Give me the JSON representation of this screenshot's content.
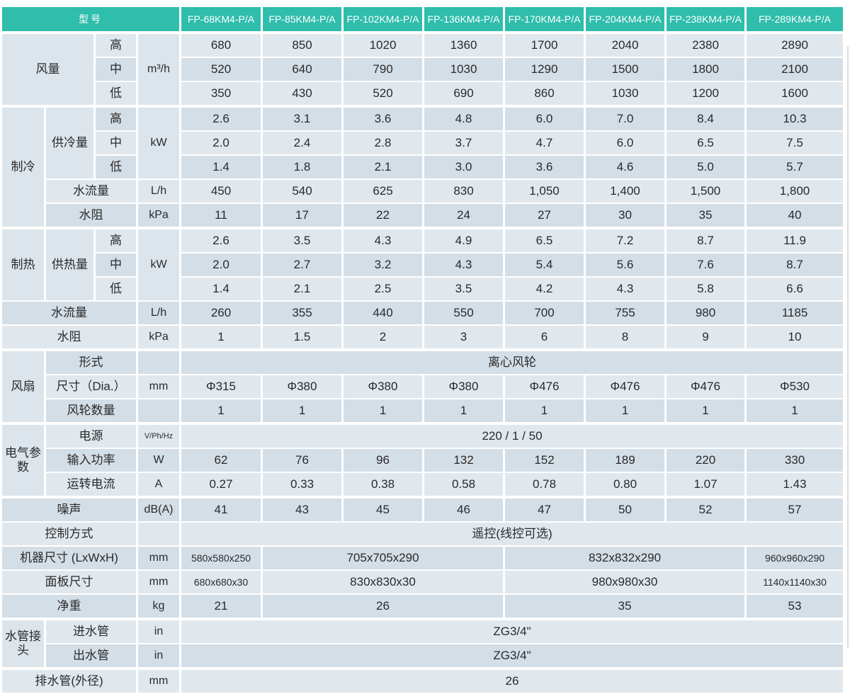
{
  "colors": {
    "header_bg": "#2fbdac",
    "row_light": "#e0e8ee",
    "row_dark": "#d4dee6",
    "merged_bg": "#dce5ec",
    "text": "#2a2a2a"
  },
  "edge_line_color": "#dbdfe2",
  "table": {
    "section_start_rows": [
      1,
      4,
      9,
      14,
      17,
      20,
      25,
      27
    ],
    "rows": [
      {
        "cells": [
          {
            "t": "型号",
            "cs": 4,
            "k": "h"
          },
          {
            "t": "FP-68KM4-P/A",
            "k": "h"
          },
          {
            "t": "FP-85KM4-P/A",
            "k": "h"
          },
          {
            "t": "FP-102KM4-P/A",
            "k": "h"
          },
          {
            "t": "FP-136KM4-P/A",
            "k": "h"
          },
          {
            "t": "FP-170KM4-P/A",
            "k": "h"
          },
          {
            "t": "FP-204KM4-P/A",
            "k": "h"
          },
          {
            "t": "FP-238KM4-P/A",
            "k": "h"
          },
          {
            "t": "FP-289KM4-P/A",
            "k": "h"
          }
        ]
      },
      {
        "cells": [
          {
            "t": "风量",
            "rs": 3,
            "cs": 2,
            "k": "l"
          },
          {
            "t": "高",
            "k": "l"
          },
          {
            "t": "m³/h",
            "rs": 3,
            "k": "u"
          },
          {
            "t": "680"
          },
          {
            "t": "850"
          },
          {
            "t": "1020"
          },
          {
            "t": "1360"
          },
          {
            "t": "1700"
          },
          {
            "t": "2040"
          },
          {
            "t": "2380"
          },
          {
            "t": "2890"
          }
        ]
      },
      {
        "cells": [
          {
            "t": "中",
            "k": "l"
          },
          {
            "t": "520"
          },
          {
            "t": "640"
          },
          {
            "t": "790"
          },
          {
            "t": "1030"
          },
          {
            "t": "1290"
          },
          {
            "t": "1500"
          },
          {
            "t": "1800"
          },
          {
            "t": "2100"
          }
        ]
      },
      {
        "cells": [
          {
            "t": "低",
            "k": "l"
          },
          {
            "t": "350"
          },
          {
            "t": "430"
          },
          {
            "t": "520"
          },
          {
            "t": "690"
          },
          {
            "t": "860"
          },
          {
            "t": "1030"
          },
          {
            "t": "1200"
          },
          {
            "t": "1600"
          }
        ]
      },
      {
        "cells": [
          {
            "t": "制冷",
            "rs": 5,
            "k": "l"
          },
          {
            "t": "供冷量",
            "rs": 3,
            "k": "l"
          },
          {
            "t": "高",
            "k": "l"
          },
          {
            "t": "kW",
            "rs": 3,
            "k": "u"
          },
          {
            "t": "2.6"
          },
          {
            "t": "3.1"
          },
          {
            "t": "3.6"
          },
          {
            "t": "4.8"
          },
          {
            "t": "6.0"
          },
          {
            "t": "7.0"
          },
          {
            "t": "8.4"
          },
          {
            "t": "10.3"
          }
        ]
      },
      {
        "cells": [
          {
            "t": "中",
            "k": "l"
          },
          {
            "t": "2.0"
          },
          {
            "t": "2.4"
          },
          {
            "t": "2.8"
          },
          {
            "t": "3.7"
          },
          {
            "t": "4.7"
          },
          {
            "t": "6.0"
          },
          {
            "t": "6.5"
          },
          {
            "t": "7.5"
          }
        ]
      },
      {
        "cells": [
          {
            "t": "低",
            "k": "l"
          },
          {
            "t": "1.4"
          },
          {
            "t": "1.8"
          },
          {
            "t": "2.1"
          },
          {
            "t": "3.0"
          },
          {
            "t": "3.6"
          },
          {
            "t": "4.6"
          },
          {
            "t": "5.0"
          },
          {
            "t": "5.7"
          }
        ]
      },
      {
        "cells": [
          {
            "t": "水流量",
            "cs": 2,
            "k": "l"
          },
          {
            "t": "L/h",
            "k": "u"
          },
          {
            "t": "450"
          },
          {
            "t": "540"
          },
          {
            "t": "625"
          },
          {
            "t": "830"
          },
          {
            "t": "1,050"
          },
          {
            "t": "1,400"
          },
          {
            "t": "1,500"
          },
          {
            "t": "1,800"
          }
        ]
      },
      {
        "cells": [
          {
            "t": "水阻",
            "cs": 2,
            "k": "l"
          },
          {
            "t": "kPa",
            "k": "u"
          },
          {
            "t": "11"
          },
          {
            "t": "17"
          },
          {
            "t": "22"
          },
          {
            "t": "24"
          },
          {
            "t": "27"
          },
          {
            "t": "30"
          },
          {
            "t": "35"
          },
          {
            "t": "40"
          }
        ]
      },
      {
        "cells": [
          {
            "t": "制热",
            "rs": 3,
            "k": "l"
          },
          {
            "t": "供热量",
            "rs": 3,
            "k": "l"
          },
          {
            "t": "高",
            "k": "l"
          },
          {
            "t": "kW",
            "rs": 3,
            "k": "u"
          },
          {
            "t": "2.6"
          },
          {
            "t": "3.5"
          },
          {
            "t": "4.3"
          },
          {
            "t": "4.9"
          },
          {
            "t": "6.5"
          },
          {
            "t": "7.2"
          },
          {
            "t": "8.7"
          },
          {
            "t": "11.9"
          }
        ]
      },
      {
        "cells": [
          {
            "t": "中",
            "k": "l"
          },
          {
            "t": "2.0"
          },
          {
            "t": "2.7"
          },
          {
            "t": "3.2"
          },
          {
            "t": "4.3"
          },
          {
            "t": "5.4"
          },
          {
            "t": "5.6"
          },
          {
            "t": "7.6"
          },
          {
            "t": "8.7"
          }
        ]
      },
      {
        "cells": [
          {
            "t": "低",
            "k": "l"
          },
          {
            "t": "1.4"
          },
          {
            "t": "2.1"
          },
          {
            "t": "2.5"
          },
          {
            "t": "3.5"
          },
          {
            "t": "4.2"
          },
          {
            "t": "4.3"
          },
          {
            "t": "5.8"
          },
          {
            "t": "6.6"
          }
        ]
      },
      {
        "cells": [
          {
            "t": "水流量",
            "cs": 3,
            "k": "l"
          },
          {
            "t": "L/h",
            "k": "u"
          },
          {
            "t": "260"
          },
          {
            "t": "355"
          },
          {
            "t": "440"
          },
          {
            "t": "550"
          },
          {
            "t": "700"
          },
          {
            "t": "755"
          },
          {
            "t": "980"
          },
          {
            "t": "1185"
          }
        ]
      },
      {
        "cells": [
          {
            "t": "水阻",
            "cs": 3,
            "k": "l"
          },
          {
            "t": "kPa",
            "k": "u"
          },
          {
            "t": "1"
          },
          {
            "t": "1.5"
          },
          {
            "t": "2"
          },
          {
            "t": "3"
          },
          {
            "t": "6"
          },
          {
            "t": "8"
          },
          {
            "t": "9"
          },
          {
            "t": "10"
          }
        ]
      },
      {
        "cells": [
          {
            "t": "风扇",
            "rs": 3,
            "k": "l"
          },
          {
            "t": "形式",
            "cs": 2,
            "k": "l"
          },
          {
            "t": "",
            "k": "u"
          },
          {
            "t": "离心风轮",
            "cs": 8
          }
        ]
      },
      {
        "cells": [
          {
            "t": "尺寸（Dia.）",
            "cs": 2,
            "k": "l"
          },
          {
            "t": "mm",
            "k": "u"
          },
          {
            "t": "Φ315"
          },
          {
            "t": "Φ380"
          },
          {
            "t": "Φ380"
          },
          {
            "t": "Φ380"
          },
          {
            "t": "Φ476"
          },
          {
            "t": "Φ476"
          },
          {
            "t": "Φ476"
          },
          {
            "t": "Φ530"
          }
        ]
      },
      {
        "cells": [
          {
            "t": "风轮数量",
            "cs": 2,
            "k": "l"
          },
          {
            "t": "",
            "k": "u"
          },
          {
            "t": "1"
          },
          {
            "t": "1"
          },
          {
            "t": "1"
          },
          {
            "t": "1"
          },
          {
            "t": "1"
          },
          {
            "t": "1"
          },
          {
            "t": "1"
          },
          {
            "t": "1"
          }
        ]
      },
      {
        "cells": [
          {
            "t": "电气参数",
            "rs": 3,
            "k": "l"
          },
          {
            "t": "电源",
            "cs": 2,
            "k": "l"
          },
          {
            "t": "V/Ph/Hz",
            "k": "us"
          },
          {
            "t": "220 / 1 / 50",
            "cs": 8
          }
        ]
      },
      {
        "cells": [
          {
            "t": "输入功率",
            "cs": 2,
            "k": "l"
          },
          {
            "t": "W",
            "k": "u"
          },
          {
            "t": "62"
          },
          {
            "t": "76"
          },
          {
            "t": "96"
          },
          {
            "t": "132"
          },
          {
            "t": "152"
          },
          {
            "t": "189"
          },
          {
            "t": "220"
          },
          {
            "t": "330"
          }
        ]
      },
      {
        "cells": [
          {
            "t": "运转电流",
            "cs": 2,
            "k": "l"
          },
          {
            "t": "A",
            "k": "u"
          },
          {
            "t": "0.27"
          },
          {
            "t": "0.33"
          },
          {
            "t": "0.38"
          },
          {
            "t": "0.58"
          },
          {
            "t": "0.78"
          },
          {
            "t": "0.80"
          },
          {
            "t": "1.07"
          },
          {
            "t": "1.43"
          }
        ]
      },
      {
        "cells": [
          {
            "t": "噪声",
            "cs": 3,
            "k": "l"
          },
          {
            "t": "dB(A)",
            "k": "u"
          },
          {
            "t": "41"
          },
          {
            "t": "43"
          },
          {
            "t": "45"
          },
          {
            "t": "46"
          },
          {
            "t": "47"
          },
          {
            "t": "50"
          },
          {
            "t": "52"
          },
          {
            "t": "57"
          }
        ]
      },
      {
        "cells": [
          {
            "t": "控制方式",
            "cs": 3,
            "k": "l"
          },
          {
            "t": "",
            "k": "u"
          },
          {
            "t": "遥控(线控可选)",
            "cs": 8
          }
        ]
      },
      {
        "cells": [
          {
            "t": "机器尺寸 (LxWxH)",
            "cs": 3,
            "k": "l"
          },
          {
            "t": "mm",
            "k": "u"
          },
          {
            "t": "580x580x250",
            "k": "vs"
          },
          {
            "t": "705x705x290",
            "cs": 3
          },
          {
            "t": "832x832x290",
            "cs": 3
          },
          {
            "t": "960x960x290",
            "k": "vs"
          }
        ]
      },
      {
        "cells": [
          {
            "t": "面板尺寸",
            "cs": 3,
            "k": "l"
          },
          {
            "t": "mm",
            "k": "u"
          },
          {
            "t": "680x680x30",
            "k": "vs"
          },
          {
            "t": "830x830x30",
            "cs": 3
          },
          {
            "t": "980x980x30",
            "cs": 3
          },
          {
            "t": "1140x1140x30",
            "k": "vs"
          }
        ]
      },
      {
        "cells": [
          {
            "t": "净重",
            "cs": 3,
            "k": "l"
          },
          {
            "t": "kg",
            "k": "u"
          },
          {
            "t": "21"
          },
          {
            "t": "26",
            "cs": 3
          },
          {
            "t": "35",
            "cs": 3
          },
          {
            "t": "53"
          }
        ]
      },
      {
        "cells": [
          {
            "t": "水管接头",
            "rs": 2,
            "k": "l"
          },
          {
            "t": "进水管",
            "cs": 2,
            "k": "l"
          },
          {
            "t": "in",
            "k": "u"
          },
          {
            "t": "ZG3/4\"",
            "cs": 8
          }
        ]
      },
      {
        "cells": [
          {
            "t": "出水管",
            "cs": 2,
            "k": "l"
          },
          {
            "t": "in",
            "k": "u"
          },
          {
            "t": "ZG3/4\"",
            "cs": 8
          }
        ]
      },
      {
        "cells": [
          {
            "t": "排水管(外径)",
            "cs": 3,
            "k": "l"
          },
          {
            "t": "mm",
            "k": "u"
          },
          {
            "t": "26",
            "cs": 8
          }
        ]
      }
    ]
  }
}
